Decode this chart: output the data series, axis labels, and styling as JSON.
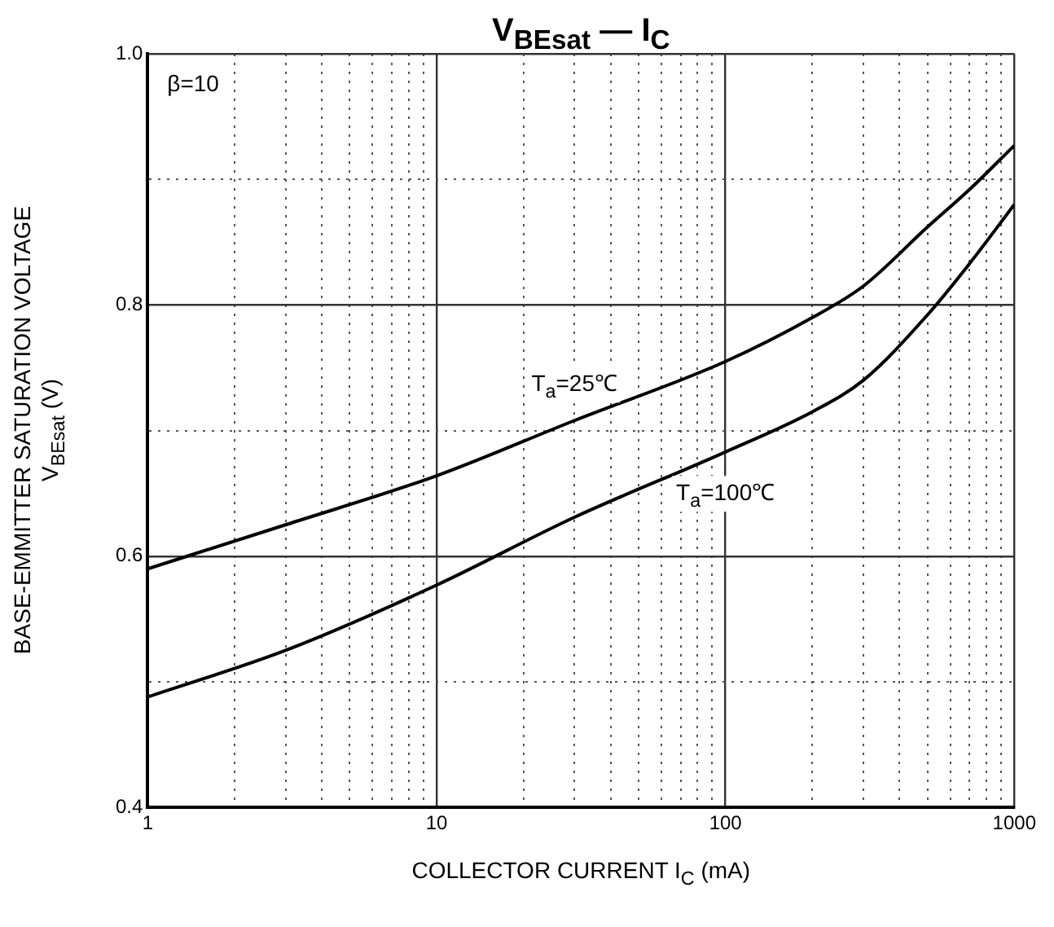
{
  "chart_data": {
    "type": "line",
    "title": "V$_{BEsat}$ — I$_{C}$",
    "xlabel": "COLLECTOR CURRENT   I$_{C}$   (mA)",
    "ylabel": "BASE-EMMITTER SATURATION VOLTAGE   V$_{BEsat}$   (V)",
    "x": [
      1,
      3,
      10,
      30,
      100,
      200,
      300,
      500,
      700,
      1000
    ],
    "series": [
      {
        "name": "T$_{a}$=25℃",
        "color": "#000000",
        "values": [
          0.59,
          0.625,
          0.664,
          0.708,
          0.755,
          0.79,
          0.815,
          0.862,
          0.892,
          0.927
        ]
      },
      {
        "name": "T$_{a}$=100℃",
        "color": "#000000",
        "values": [
          0.488,
          0.525,
          0.577,
          0.631,
          0.683,
          0.715,
          0.74,
          0.792,
          0.833,
          0.88
        ]
      }
    ],
    "log": "x",
    "xlim": [
      1,
      1000
    ],
    "ylim": [
      0.4,
      1.0
    ],
    "xticks": [
      1,
      {
        "value": 2,
        "label": null
      },
      {
        "value": 3,
        "label": null
      },
      {
        "value": 4,
        "label": null
      },
      {
        "value": 5,
        "label": null
      },
      {
        "value": 6,
        "label": null
      },
      {
        "value": 7,
        "label": null
      },
      {
        "value": 8,
        "label": null
      },
      {
        "value": 9,
        "label": null
      },
      10,
      {
        "value": 20,
        "label": null
      },
      {
        "value": 30,
        "label": null
      },
      {
        "value": 40,
        "label": null
      },
      {
        "value": 50,
        "label": null
      },
      {
        "value": 60,
        "label": null
      },
      {
        "value": 70,
        "label": null
      },
      {
        "value": 80,
        "label": null
      },
      {
        "value": 90,
        "label": null
      },
      100,
      {
        "value": 200,
        "label": null
      },
      {
        "value": 300,
        "label": null
      },
      {
        "value": 400,
        "label": null
      },
      {
        "value": 500,
        "label": null
      },
      {
        "value": 600,
        "label": null
      },
      {
        "value": 700,
        "label": null
      },
      {
        "value": 800,
        "label": null
      },
      {
        "value": 900,
        "label": null
      },
      1000
    ],
    "yticks": [
      0.4,
      {
        "value": 0.5,
        "label": null
      },
      0.6,
      {
        "value": 0.7,
        "label": null
      },
      0.8,
      {
        "value": 0.9,
        "label": null
      },
      {
        "value": 1.0,
        "label": "1.0"
      }
    ],
    "grid": true,
    "legend": false,
    "marker": "none",
    "line_style": "solid",
    "annotations": [
      "β=10"
    ]
  }
}
